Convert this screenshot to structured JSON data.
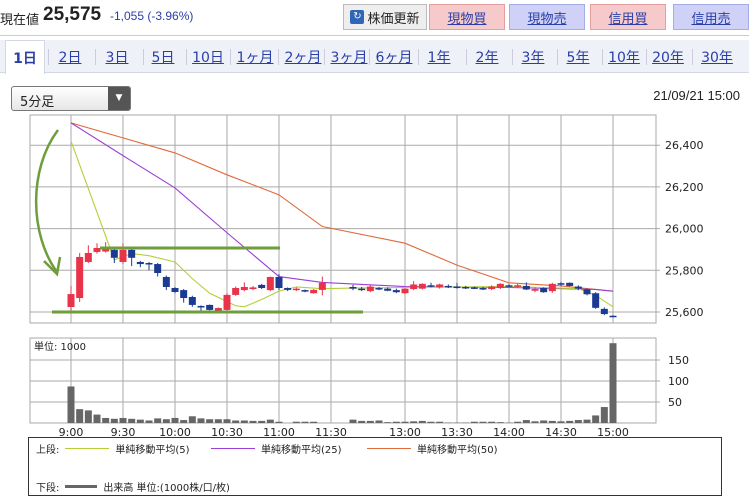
{
  "header": {
    "price_label": "現在値",
    "price": "25,575",
    "change": "-1,055 (-3.96%)",
    "refresh_label": "株価更新",
    "buttons": [
      "現物買",
      "現物売",
      "信用買",
      "信用売"
    ]
  },
  "tabs": [
    "1日",
    "2日",
    "3日",
    "5日",
    "10日",
    "1ヶ月",
    "2ヶ月",
    "3ヶ月",
    "6ヶ月",
    "1年",
    "2年",
    "3年",
    "5年",
    "10年",
    "20年",
    "30年"
  ],
  "active_tab": "1日",
  "interval_select": "5分足",
  "timestamp": "21/09/21 15:00",
  "colors": {
    "up": "#e8334a",
    "down": "#1b3a91",
    "ma5": "#b4cf3c",
    "ma25": "#9b3fd6",
    "ma50": "#e06a3c",
    "volume": "#666666",
    "annotation": "#6e9e3c"
  },
  "chart_data": [
    {
      "type": "candlestick",
      "y_ticks": [
        "26,400",
        "26,200",
        "26,000",
        "25,800",
        "25,600"
      ],
      "y_tick_values": [
        26400,
        26200,
        26000,
        25800,
        25600
      ],
      "ylim": [
        25540,
        26580
      ],
      "x_ticks": [
        "9:00",
        "9:30",
        "10:00",
        "10:30",
        "11:00",
        "11:30",
        "13:00",
        "13:30",
        "14:00",
        "14:30",
        "15:00"
      ],
      "session_morning": "9:00-11:25",
      "session_afternoon": "12:30-15:00",
      "interval_min": 5,
      "ohlc": [
        [
          25624,
          25725,
          25600,
          25686
        ],
        [
          25667,
          25883,
          25648,
          25864
        ],
        [
          25840,
          25920,
          25835,
          25883
        ],
        [
          25888,
          25930,
          25880,
          25907
        ],
        [
          25890,
          25935,
          25885,
          25912
        ],
        [
          25898,
          25910,
          25835,
          25860
        ],
        [
          25840,
          25930,
          25830,
          25898
        ],
        [
          25898,
          25905,
          25820,
          25860
        ],
        [
          25840,
          25845,
          25815,
          25830
        ],
        [
          25835,
          25840,
          25800,
          25830
        ],
        [
          25830,
          25835,
          25770,
          25787
        ],
        [
          25768,
          25775,
          25705,
          25720
        ],
        [
          25715,
          25720,
          25690,
          25696
        ],
        [
          25705,
          25710,
          25645,
          25667
        ],
        [
          25672,
          25678,
          25625,
          25634
        ],
        [
          25629,
          25632,
          25605,
          25624
        ],
        [
          25634,
          25636,
          25605,
          25610
        ],
        [
          25605,
          25622,
          25600,
          25619
        ],
        [
          25610,
          25692,
          25605,
          25682
        ],
        [
          25682,
          25722,
          25678,
          25715
        ],
        [
          25705,
          25742,
          25700,
          25720
        ],
        [
          25710,
          25725,
          25705,
          25718
        ],
        [
          25730,
          25735,
          25710,
          25715
        ],
        [
          25705,
          25770,
          25700,
          25768
        ],
        [
          25768,
          25782,
          25705,
          25715
        ],
        [
          25715,
          25718,
          25700,
          25706
        ],
        [
          25708,
          25718,
          25700,
          25712
        ],
        [
          25705,
          25708,
          25695,
          25700
        ],
        [
          25690,
          25710,
          25688,
          25706
        ],
        [
          25706,
          25770,
          25680,
          25740
        ],
        [
          25720,
          25730,
          25705,
          25712
        ],
        [
          25712,
          25720,
          25700,
          25705
        ],
        [
          25700,
          25730,
          25695,
          25722
        ],
        [
          25715,
          25720,
          25705,
          25710
        ],
        [
          25712,
          25718,
          25700,
          25702
        ],
        [
          25705,
          25712,
          25690,
          25695
        ],
        [
          25690,
          25715,
          25685,
          25712
        ],
        [
          25710,
          25748,
          25705,
          25732
        ],
        [
          25712,
          25738,
          25708,
          25735
        ],
        [
          25728,
          25740,
          25718,
          25722
        ],
        [
          25718,
          25736,
          25712,
          25732
        ],
        [
          25725,
          25732,
          25715,
          25722
        ],
        [
          25722,
          25740,
          25712,
          25718
        ],
        [
          25720,
          25725,
          25710,
          25716
        ],
        [
          25718,
          25722,
          25710,
          25714
        ],
        [
          25715,
          25720,
          25705,
          25710
        ],
        [
          25710,
          25728,
          25705,
          25722
        ],
        [
          25715,
          25738,
          25710,
          25735
        ],
        [
          25728,
          25734,
          25720,
          25726
        ],
        [
          25725,
          25735,
          25718,
          25728
        ],
        [
          25725,
          25742,
          25705,
          25708
        ],
        [
          25702,
          25718,
          25695,
          25710
        ],
        [
          25715,
          25718,
          25692,
          25695
        ],
        [
          25700,
          25740,
          25692,
          25735
        ],
        [
          25738,
          25745,
          25725,
          25735
        ],
        [
          25740,
          25742,
          25722,
          25725
        ],
        [
          25722,
          25728,
          25705,
          25712
        ],
        [
          25708,
          25712,
          25680,
          25685
        ],
        [
          25690,
          25695,
          25615,
          25620
        ],
        [
          25615,
          25622,
          25585,
          25590
        ],
        [
          25582,
          25585,
          25575,
          25575
        ]
      ],
      "ma5": [
        [
          "9:00",
          26420
        ],
        [
          "9:25",
          25850
        ],
        [
          "9:35",
          25880
        ],
        [
          "9:45",
          25870
        ],
        [
          "10:00",
          25840
        ],
        [
          "10:10",
          25760
        ],
        [
          "10:20",
          25690
        ],
        [
          "10:35",
          25630
        ],
        [
          "10:40",
          25625
        ],
        [
          "10:50",
          25660
        ],
        [
          "11:00",
          25700
        ],
        [
          "11:10",
          25720
        ],
        [
          "11:25",
          25712
        ],
        [
          "12:30",
          25715
        ],
        [
          "13:30",
          25720
        ],
        [
          "14:00",
          25722
        ],
        [
          "14:40",
          25712
        ],
        [
          "14:50",
          25680
        ],
        [
          "15:00",
          25625
        ]
      ],
      "ma25": [
        [
          "9:00",
          26507
        ],
        [
          "9:30",
          26350
        ],
        [
          "10:00",
          26195
        ],
        [
          "10:30",
          25980
        ],
        [
          "11:00",
          25770
        ],
        [
          "11:25",
          25742
        ],
        [
          "13:00",
          25722
        ],
        [
          "14:00",
          25718
        ],
        [
          "14:50",
          25708
        ],
        [
          "15:00",
          25700
        ]
      ],
      "ma50": [
        [
          "9:00",
          26507
        ],
        [
          "9:30",
          26435
        ],
        [
          "10:00",
          26363
        ],
        [
          "10:30",
          26258
        ],
        [
          "11:00",
          26162
        ],
        [
          "11:25",
          26010
        ],
        [
          "13:00",
          25930
        ],
        [
          "13:30",
          25825
        ],
        [
          "14:00",
          25740
        ],
        [
          "14:30",
          25725
        ],
        [
          "15:00",
          25700
        ]
      ]
    },
    {
      "type": "bar",
      "unit_label": "単位: 1000",
      "y_ticks": [
        "150",
        "100",
        "50"
      ],
      "y_tick_values": [
        150,
        100,
        50
      ],
      "ylim": [
        0,
        202
      ],
      "values": [
        87,
        33,
        30,
        20,
        12,
        10,
        12,
        10,
        8,
        6,
        11,
        9,
        12,
        7,
        16,
        11,
        9,
        9,
        9,
        6,
        6,
        5,
        5,
        8,
        3,
        0,
        3,
        3,
        3,
        0,
        8,
        5,
        5,
        6,
        2,
        3,
        3,
        4,
        5,
        3,
        3,
        1,
        1,
        1,
        3,
        3,
        3,
        2,
        1,
        3,
        7,
        4,
        6,
        5,
        4,
        5,
        7,
        8,
        18,
        38,
        190
      ]
    }
  ],
  "legend": {
    "upper_label": "上段:",
    "lower_label": "下段:",
    "ma5": "単純移動平均(5)",
    "ma25": "単純移動平均(25)",
    "ma50": "単純移動平均(50)",
    "volume": "出来高 単位:(1000株/口/枚)"
  }
}
